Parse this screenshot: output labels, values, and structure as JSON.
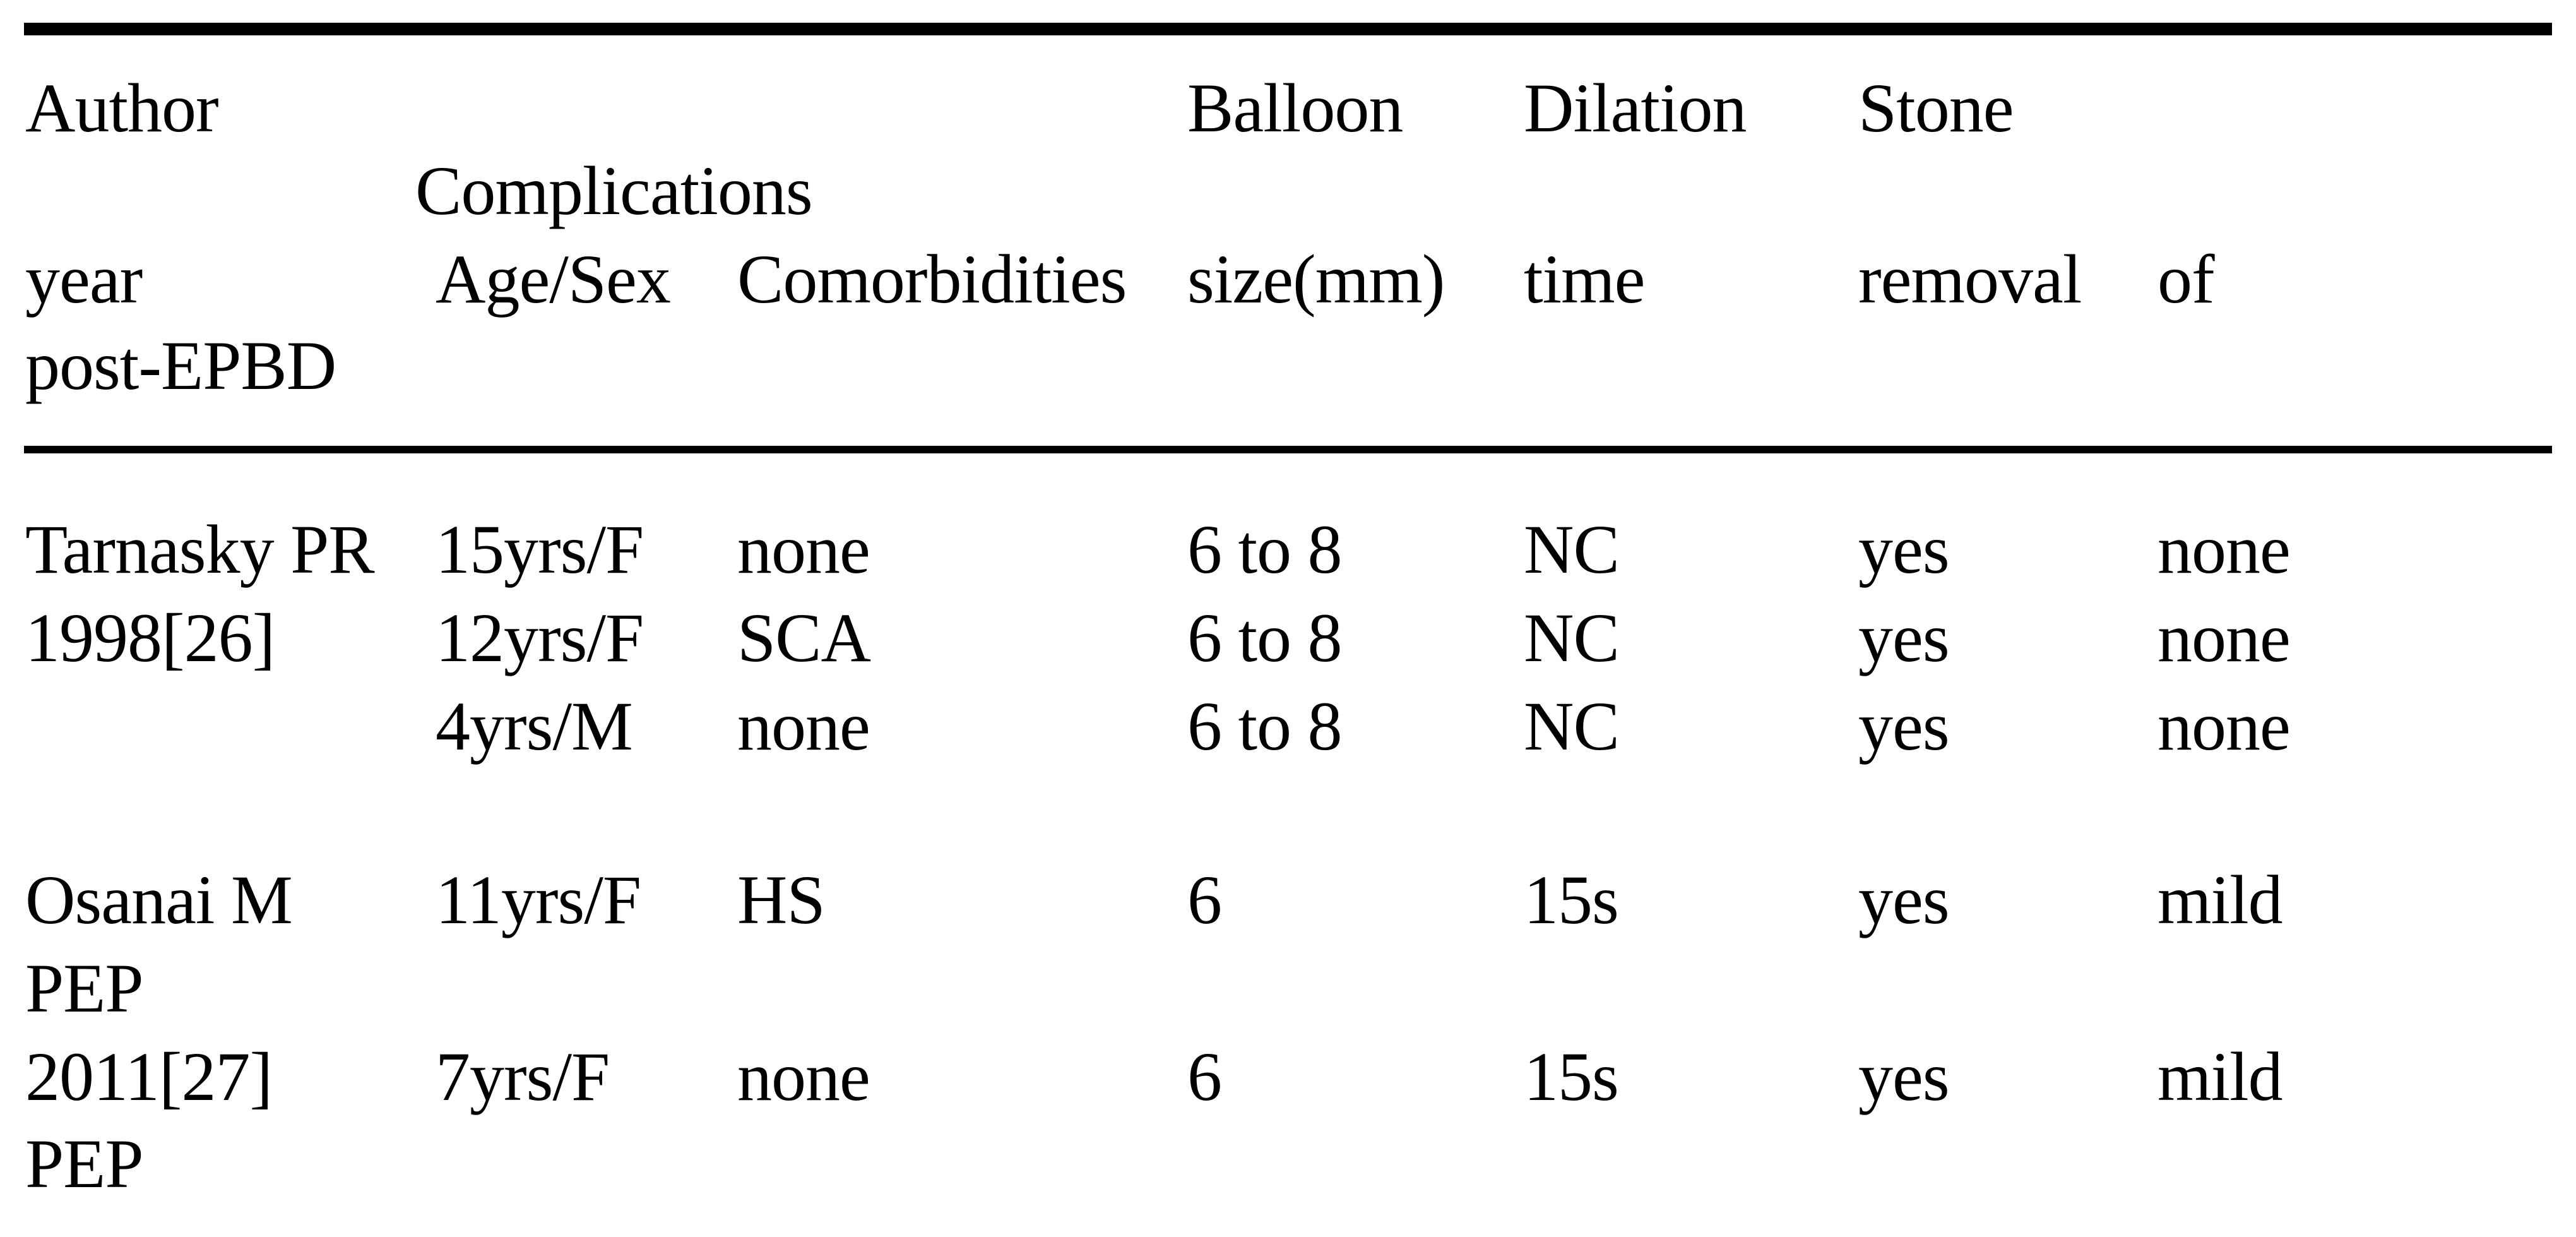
{
  "colors": {
    "background": "#ffffff",
    "text": "#000000",
    "rule": "#000000"
  },
  "header": {
    "author": "Author",
    "balloon": "Balloon",
    "dilation": "Dilation",
    "stone": "Stone",
    "complications": "Complications",
    "year": "year",
    "age_sex": "Age/Sex",
    "comorbidities": "Comorbidities",
    "size_mm": "size(mm)",
    "time": "time",
    "removal": "removal",
    "of": "of",
    "post_epbd": "post-EPBD"
  },
  "columns": [
    "Author year",
    "Age/Sex",
    "Comorbidities",
    "Balloon size(mm)",
    "Dilation time",
    "Stone removal",
    "Complications of post-EPBD"
  ],
  "rows": [
    {
      "author": "Tarnasky PR",
      "age_sex": "15yrs/F",
      "comorbidities": "none",
      "balloon_size": "6 to 8",
      "dilation_time": "NC",
      "stone_removal": "yes",
      "complications": "none"
    },
    {
      "author": "1998[26]",
      "age_sex": "12yrs/F",
      "comorbidities": "SCA",
      "balloon_size": "6 to 8",
      "dilation_time": "NC",
      "stone_removal": "yes",
      "complications": "none"
    },
    {
      "author": "",
      "age_sex": "4yrs/M",
      "comorbidities": "none",
      "balloon_size": "6 to 8",
      "dilation_time": "NC",
      "stone_removal": "yes",
      "complications": "none"
    },
    {
      "author": "Osanai M",
      "age_sex": "11yrs/F",
      "comorbidities": "HS",
      "balloon_size": "6",
      "dilation_time": "15s",
      "stone_removal": "yes",
      "complications": "mild"
    },
    {
      "author": "PEP"
    },
    {
      "author": "2011[27]",
      "age_sex": "7yrs/F",
      "comorbidities": "none",
      "balloon_size": "6",
      "dilation_time": "15s",
      "stone_removal": "yes",
      "complications": "mild"
    },
    {
      "author": "PEP"
    }
  ]
}
